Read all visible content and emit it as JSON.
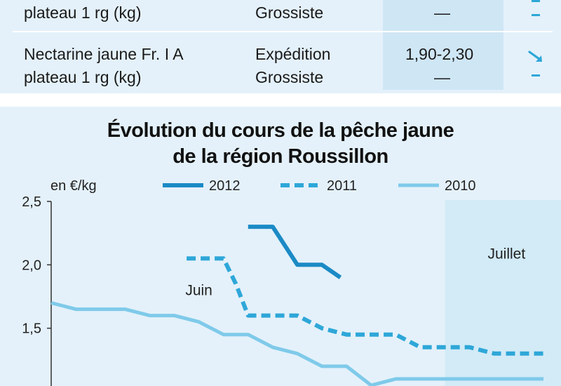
{
  "table": {
    "rows": [
      {
        "product_line2": "plateau 1 rg (kg)",
        "stage_line2": "Grossiste",
        "price_line2": "—",
        "trend_icons": [
          "trend-partial-icon",
          "dash-icon"
        ]
      },
      {
        "product_line1": "Nectarine jaune Fr. I A",
        "product_line2": "plateau 1 rg (kg)",
        "stage_line1": "Expédition",
        "stage_line2": "Grossiste",
        "price_line1": "1,90-2,30",
        "price_line2": "—",
        "trend_icons": [
          "down-right-arrow-icon",
          "dash-icon"
        ]
      }
    ]
  },
  "colors": {
    "panel_bg": "#e4f1fa",
    "price_col_bg": "#cfe6f5",
    "series_2012": "#1b8ac5",
    "series_2011": "#2ea7d8",
    "series_2010": "#7fcaea",
    "july_band": "#d2ebf7",
    "arrow": "#2ea7d8"
  },
  "chart_data": {
    "type": "line",
    "title_line1": "Évolution du cours de la pêche jaune",
    "title_line2": "de la région Roussillon",
    "unit_label": "en €/kg",
    "ylim": [
      1.0,
      2.5
    ],
    "yticks": [
      1.5,
      2.0,
      2.5
    ],
    "ytick_labels": [
      "1,5",
      "2,0",
      "2,5"
    ],
    "x_range": [
      0,
      40
    ],
    "annotations": [
      {
        "text": "Juin",
        "x": 12,
        "y": 1.76
      },
      {
        "text": "Juillet",
        "x": 37,
        "y": 2.05
      }
    ],
    "july_start_x": 32,
    "legend": [
      {
        "name": "2012",
        "style": "solid-thick"
      },
      {
        "name": "2011",
        "style": "dashed"
      },
      {
        "name": "2010",
        "style": "solid"
      }
    ],
    "series": [
      {
        "name": "2012",
        "x": [
          16,
          18,
          20,
          22,
          23.5
        ],
        "values": [
          2.3,
          2.3,
          2.0,
          2.0,
          1.9
        ]
      },
      {
        "name": "2011",
        "x": [
          11,
          14,
          15,
          16,
          18,
          20,
          22,
          24,
          26,
          28,
          30,
          32,
          34,
          36,
          38,
          40
        ],
        "values": [
          2.05,
          2.05,
          1.85,
          1.6,
          1.6,
          1.6,
          1.5,
          1.45,
          1.45,
          1.45,
          1.35,
          1.35,
          1.35,
          1.3,
          1.3,
          1.3
        ]
      },
      {
        "name": "2010",
        "x": [
          0,
          2,
          4,
          6,
          8,
          10,
          12,
          14,
          16,
          18,
          20,
          22,
          23,
          24,
          26,
          28,
          30,
          32,
          34,
          36,
          38,
          40
        ],
        "values": [
          1.7,
          1.65,
          1.65,
          1.65,
          1.6,
          1.6,
          1.55,
          1.45,
          1.45,
          1.35,
          1.3,
          1.2,
          1.2,
          1.2,
          1.05,
          1.1,
          1.1,
          1.1,
          1.1,
          1.1,
          1.1,
          1.1
        ]
      }
    ]
  }
}
